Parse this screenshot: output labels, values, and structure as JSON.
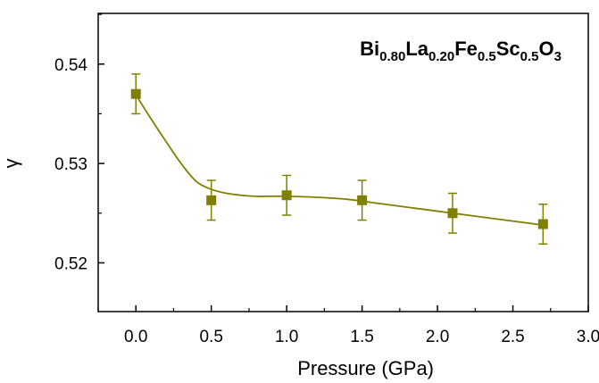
{
  "chart_data": {
    "type": "scatter",
    "title_parts": [
      {
        "text": "Bi",
        "sub": false
      },
      {
        "text": "0.80",
        "sub": true
      },
      {
        "text": "La",
        "sub": false
      },
      {
        "text": "0.20",
        "sub": true
      },
      {
        "text": "Fe",
        "sub": false
      },
      {
        "text": "0.5",
        "sub": true
      },
      {
        "text": "Sc",
        "sub": false
      },
      {
        "text": "0.5",
        "sub": true
      },
      {
        "text": "O",
        "sub": false
      },
      {
        "text": "3",
        "sub": true
      }
    ],
    "xlabel": "Pressure (GPa)",
    "ylabel": "γ",
    "xlim": [
      -0.25,
      3.0
    ],
    "ylim": [
      0.5151,
      0.5451
    ],
    "x_ticks": [
      "0.0",
      "0.5",
      "1.0",
      "1.5",
      "2.0",
      "2.5",
      "3.0"
    ],
    "y_ticks": [
      "0.52",
      "0.53",
      "0.54"
    ],
    "legend_placement": "none",
    "grid": false,
    "series": [
      {
        "marker": "square",
        "color": "#808000",
        "x": [
          0.0,
          0.5,
          1.0,
          1.5,
          2.1,
          2.7
        ],
        "y": [
          0.537,
          0.5263,
          0.5268,
          0.5263,
          0.525,
          0.5239
        ],
        "error": [
          0.002,
          0.002,
          0.002,
          0.002,
          0.002,
          0.002
        ]
      }
    ],
    "fit_curve": {
      "color": "#808000",
      "x": [
        0.0,
        0.1,
        0.2,
        0.3,
        0.4,
        0.5,
        0.6,
        0.7,
        0.8,
        0.9,
        1.0,
        1.2,
        1.4,
        1.6,
        1.8,
        2.0,
        2.2,
        2.4,
        2.6,
        2.7
      ],
      "y": [
        0.5369,
        0.5345,
        0.5322,
        0.53,
        0.5282,
        0.5274,
        0.527,
        0.5268,
        0.5267,
        0.5267,
        0.5267,
        0.5266,
        0.5264,
        0.526,
        0.5256,
        0.5252,
        0.5248,
        0.5244,
        0.524,
        0.5238
      ]
    }
  }
}
